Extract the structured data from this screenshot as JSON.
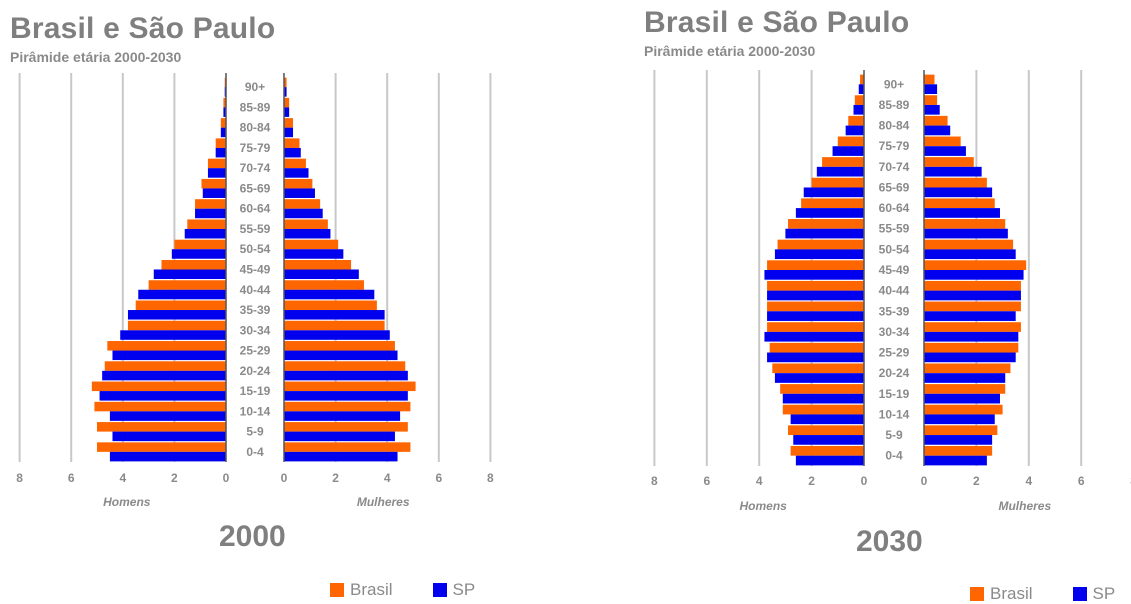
{
  "colors": {
    "brasil": "#ff6600",
    "sp": "#0000ee",
    "grid": "#c8c8c8",
    "text": "#8a8a8a",
    "title": "#7f7f7f"
  },
  "chart_data": [
    {
      "type": "bar",
      "orientation": "horizontal",
      "layout": "population-pyramid",
      "title": "Brasil e São Paulo",
      "subtitle": "Pirâmide etária 2000-2030",
      "year_label": "2000",
      "left_label": "Homens",
      "right_label": "Mulheres",
      "categories": [
        "0-4",
        "5-9",
        "10-14",
        "15-19",
        "20-24",
        "25-29",
        "30-34",
        "35-39",
        "40-44",
        "45-49",
        "50-54",
        "55-59",
        "60-64",
        "65-69",
        "70-74",
        "75-79",
        "80-84",
        "85-89",
        "90+"
      ],
      "xlim": [
        0,
        8
      ],
      "ticks": [
        8,
        6,
        4,
        2,
        0
      ],
      "grid": true,
      "legend_position": "bottom",
      "series": [
        {
          "name": "Brasil",
          "side": "homens",
          "values": [
            5.0,
            5.0,
            5.1,
            5.2,
            4.7,
            4.6,
            3.8,
            3.5,
            3.0,
            2.5,
            2.0,
            1.5,
            1.2,
            0.95,
            0.7,
            0.4,
            0.2,
            0.1,
            0.05
          ]
        },
        {
          "name": "SP",
          "side": "homens",
          "values": [
            4.5,
            4.4,
            4.5,
            4.9,
            4.8,
            4.4,
            4.1,
            3.8,
            3.4,
            2.8,
            2.1,
            1.6,
            1.2,
            0.9,
            0.7,
            0.4,
            0.2,
            0.1,
            0.05
          ]
        },
        {
          "name": "Brasil",
          "side": "mulheres",
          "values": [
            4.9,
            4.8,
            4.9,
            5.1,
            4.7,
            4.3,
            3.9,
            3.6,
            3.1,
            2.6,
            2.1,
            1.7,
            1.4,
            1.1,
            0.85,
            0.6,
            0.35,
            0.2,
            0.1
          ]
        },
        {
          "name": "SP",
          "side": "mulheres",
          "values": [
            4.4,
            4.3,
            4.5,
            4.8,
            4.8,
            4.4,
            4.1,
            3.9,
            3.5,
            2.9,
            2.3,
            1.8,
            1.5,
            1.2,
            0.95,
            0.65,
            0.35,
            0.2,
            0.1
          ]
        }
      ]
    },
    {
      "type": "bar",
      "orientation": "horizontal",
      "layout": "population-pyramid",
      "title": "Brasil e São Paulo",
      "subtitle": "Pirâmide etária 2000-2030",
      "year_label": "2030",
      "left_label": "Homens",
      "right_label": "Mulheres",
      "categories": [
        "0-4",
        "5-9",
        "10-14",
        "15-19",
        "20-24",
        "25-29",
        "30-34",
        "35-39",
        "40-44",
        "45-49",
        "50-54",
        "55-59",
        "60-64",
        "65-69",
        "70-74",
        "75-79",
        "80-84",
        "85-89",
        "90+"
      ],
      "xlim": [
        0,
        8
      ],
      "ticks": [
        8,
        6,
        4,
        2,
        0
      ],
      "grid": true,
      "legend_position": "bottom",
      "series": [
        {
          "name": "Brasil",
          "side": "homens",
          "values": [
            2.8,
            2.9,
            3.1,
            3.2,
            3.5,
            3.6,
            3.7,
            3.7,
            3.7,
            3.7,
            3.3,
            2.9,
            2.4,
            2.0,
            1.6,
            1.0,
            0.6,
            0.35,
            0.15
          ]
        },
        {
          "name": "SP",
          "side": "homens",
          "values": [
            2.6,
            2.7,
            2.8,
            3.1,
            3.4,
            3.7,
            3.8,
            3.7,
            3.7,
            3.8,
            3.4,
            3.0,
            2.6,
            2.3,
            1.8,
            1.2,
            0.7,
            0.4,
            0.2
          ]
        },
        {
          "name": "Brasil",
          "side": "mulheres",
          "values": [
            2.6,
            2.8,
            3.0,
            3.1,
            3.3,
            3.6,
            3.7,
            3.7,
            3.7,
            3.9,
            3.4,
            3.1,
            2.7,
            2.4,
            1.9,
            1.4,
            0.9,
            0.5,
            0.4
          ]
        },
        {
          "name": "SP",
          "side": "mulheres",
          "values": [
            2.4,
            2.6,
            2.7,
            2.9,
            3.1,
            3.5,
            3.6,
            3.5,
            3.7,
            3.8,
            3.5,
            3.2,
            2.9,
            2.6,
            2.2,
            1.6,
            1.0,
            0.6,
            0.5
          ]
        }
      ]
    }
  ]
}
